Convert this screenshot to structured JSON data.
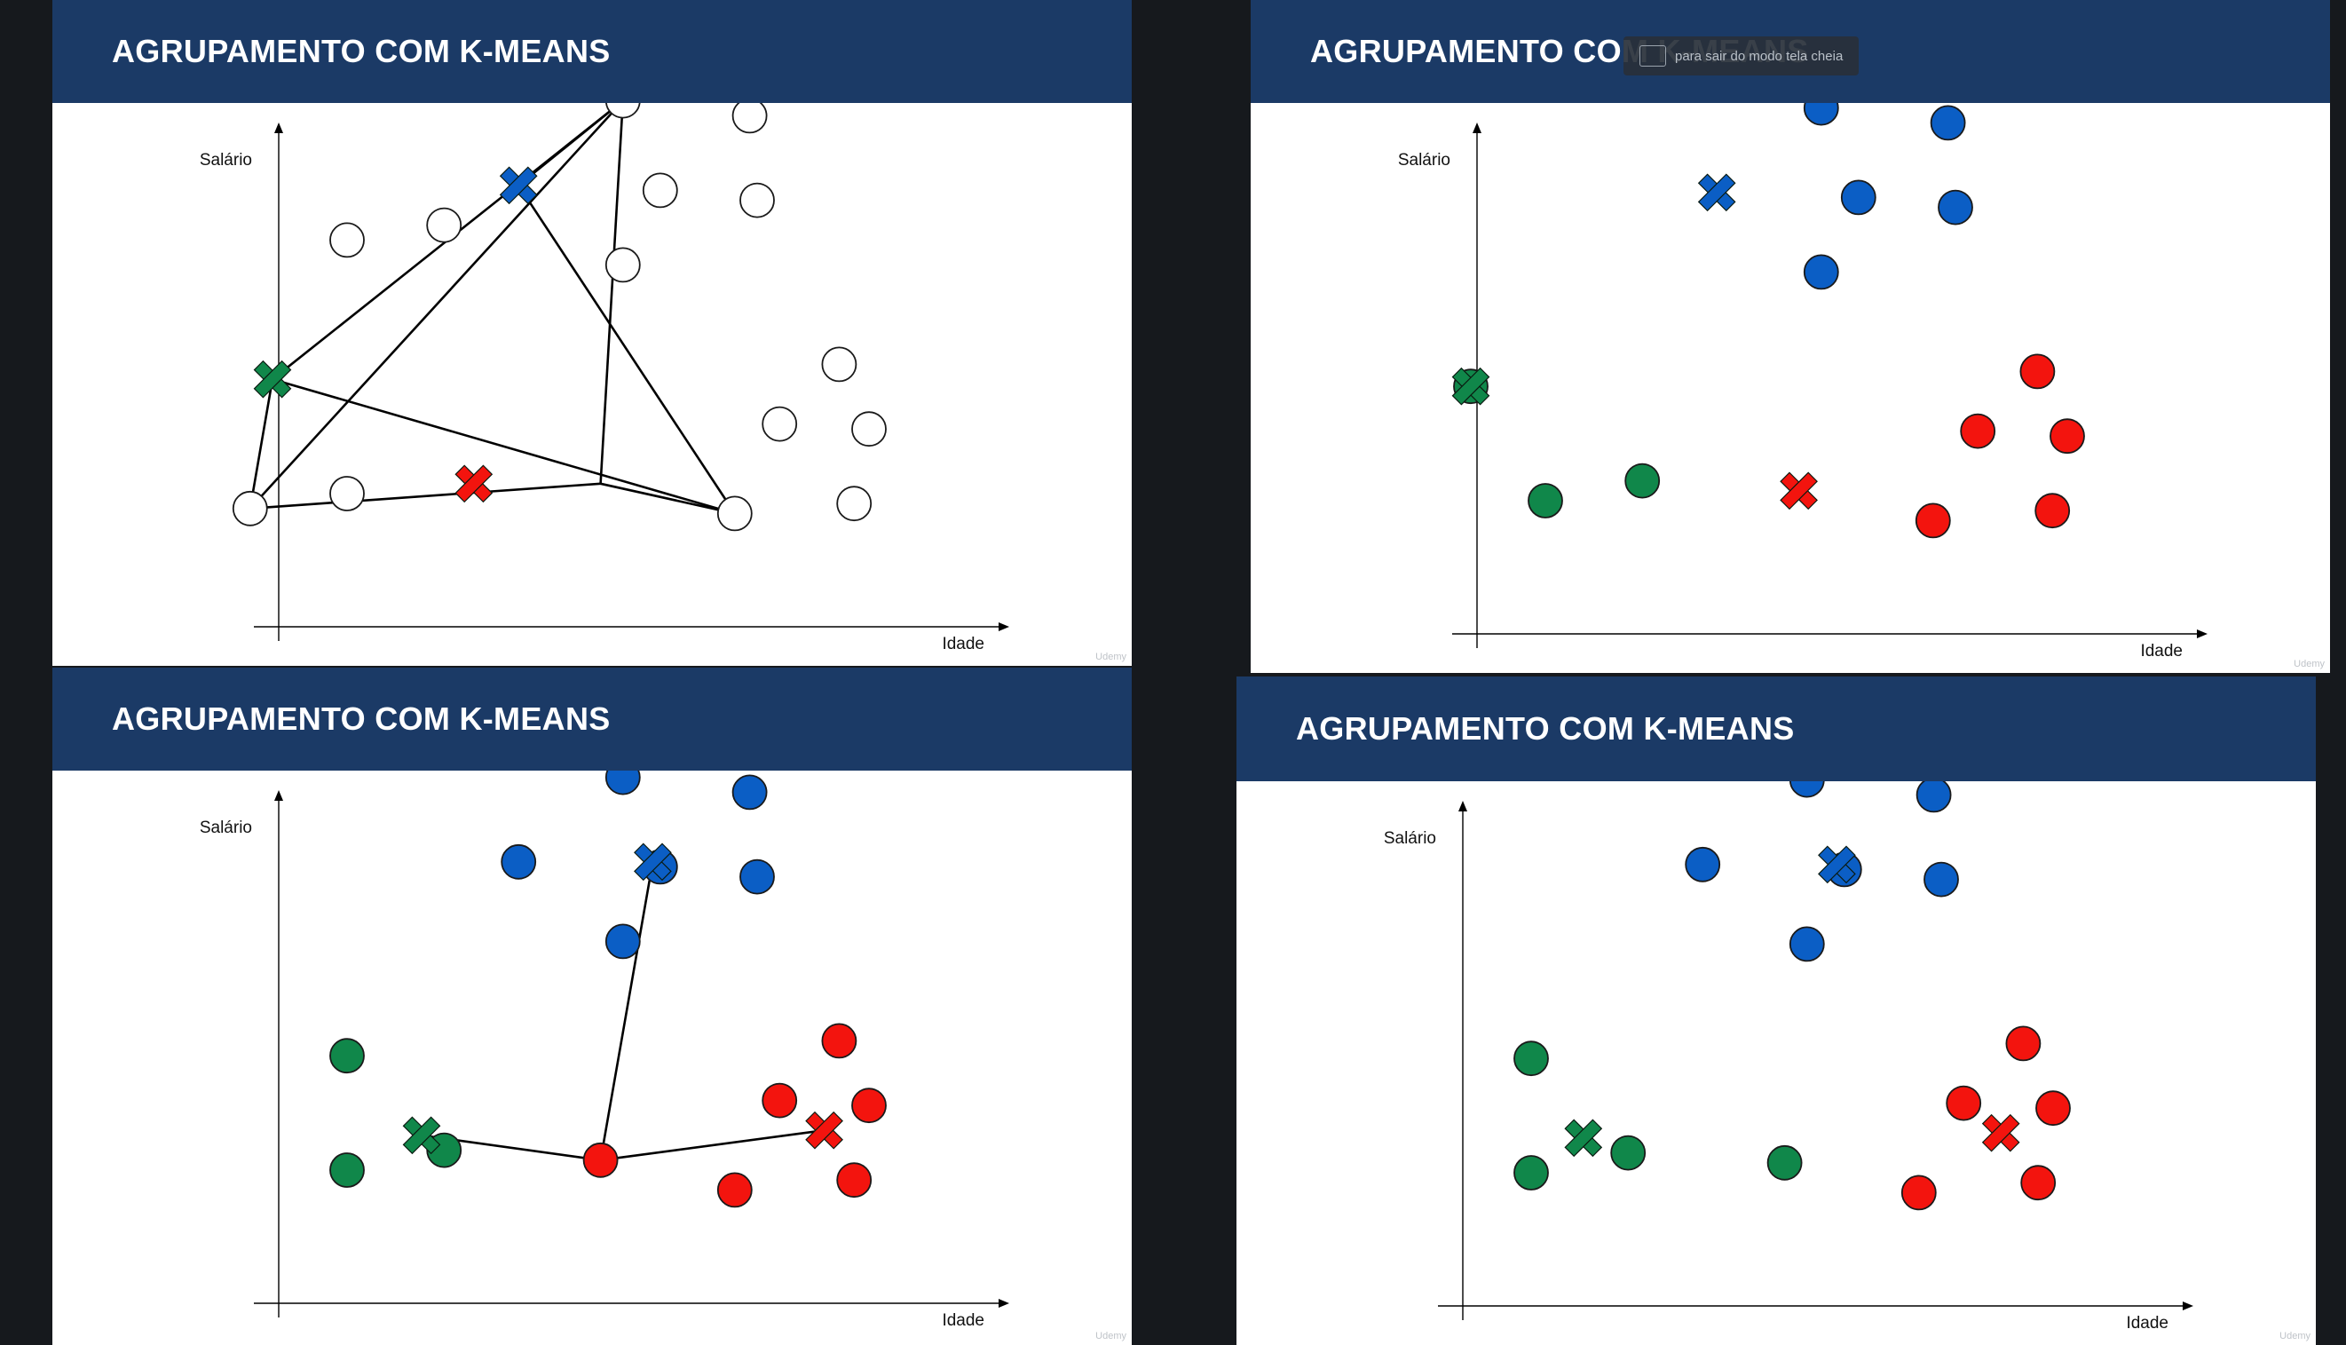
{
  "colors": {
    "background": "#16191d",
    "header": "#1b3a66",
    "blue": "#0b5ec5",
    "green": "#10874a",
    "red": "#f3140e",
    "line": "#000000"
  },
  "toast": {
    "text": "para sair do modo tela cheia"
  },
  "watermark": "Udemy",
  "slides": [
    {
      "title": "AGRUPAMENTO COM K-MEANS",
      "chart_data": {
        "type": "scatter",
        "xlabel": "Idade",
        "ylabel": "Salário",
        "points": [
          {
            "x": 5,
            "y": 66,
            "c": "none"
          },
          {
            "x": 18,
            "y": 69,
            "c": "none"
          },
          {
            "x": 42,
            "y": 94,
            "c": "none"
          },
          {
            "x": 59,
            "y": 91,
            "c": "none"
          },
          {
            "x": 47,
            "y": 76,
            "c": "none"
          },
          {
            "x": 60,
            "y": 74,
            "c": "none"
          },
          {
            "x": 42,
            "y": 61,
            "c": "none"
          },
          {
            "x": 71,
            "y": 41,
            "c": "none"
          },
          {
            "x": 63,
            "y": 29,
            "c": "none"
          },
          {
            "x": 75,
            "y": 28,
            "c": "none"
          },
          {
            "x": -8,
            "y": 12,
            "c": "none"
          },
          {
            "x": 5,
            "y": 15,
            "c": "none"
          },
          {
            "x": 57,
            "y": 11,
            "c": "none"
          },
          {
            "x": 73,
            "y": 13,
            "c": "none"
          }
        ],
        "centroids": [
          {
            "x": 28,
            "y": 77,
            "c": "blue"
          },
          {
            "x": -5,
            "y": 38,
            "c": "green"
          },
          {
            "x": 22,
            "y": 17,
            "c": "red"
          }
        ],
        "lines": [
          [
            [
              42,
              94
            ],
            [
              28,
              77
            ]
          ],
          [
            [
              42,
              94
            ],
            [
              -5,
              38
            ]
          ],
          [
            [
              42,
              94
            ],
            [
              -8,
              12
            ]
          ],
          [
            [
              42,
              94
            ],
            [
              39,
              17
            ]
          ],
          [
            [
              28,
              77
            ],
            [
              57,
              11
            ]
          ],
          [
            [
              -5,
              38
            ],
            [
              -8,
              12
            ]
          ],
          [
            [
              -5,
              38
            ],
            [
              57,
              11
            ]
          ],
          [
            [
              -8,
              12
            ],
            [
              39,
              17
            ]
          ],
          [
            [
              39,
              17
            ],
            [
              57,
              11
            ]
          ]
        ]
      }
    },
    {
      "title": "AGRUPAMENTO COM K-MEANS",
      "chart_data": {
        "type": "scatter",
        "xlabel": "Idade",
        "ylabel": "Salário",
        "points": [
          {
            "x": 42,
            "y": 94,
            "c": "blue"
          },
          {
            "x": 59,
            "y": 91,
            "c": "blue"
          },
          {
            "x": 47,
            "y": 76,
            "c": "blue"
          },
          {
            "x": 60,
            "y": 74,
            "c": "blue"
          },
          {
            "x": 42,
            "y": 61,
            "c": "blue"
          },
          {
            "x": -5,
            "y": 38,
            "c": "green"
          },
          {
            "x": 5,
            "y": 15,
            "c": "green"
          },
          {
            "x": 18,
            "y": 19,
            "c": "green"
          },
          {
            "x": 71,
            "y": 41,
            "c": "red"
          },
          {
            "x": 63,
            "y": 29,
            "c": "red"
          },
          {
            "x": 75,
            "y": 28,
            "c": "red"
          },
          {
            "x": 57,
            "y": 11,
            "c": "red"
          },
          {
            "x": 73,
            "y": 13,
            "c": "red"
          }
        ],
        "centroids": [
          {
            "x": 28,
            "y": 77,
            "c": "blue"
          },
          {
            "x": -5,
            "y": 38,
            "c": "green"
          },
          {
            "x": 39,
            "y": 17,
            "c": "red"
          }
        ],
        "lines": []
      }
    },
    {
      "title": "AGRUPAMENTO COM K-MEANS",
      "chart_data": {
        "type": "scatter",
        "xlabel": "Idade",
        "ylabel": "Salário",
        "points": [
          {
            "x": 42,
            "y": 94,
            "c": "blue"
          },
          {
            "x": 59,
            "y": 91,
            "c": "blue"
          },
          {
            "x": 28,
            "y": 77,
            "c": "blue"
          },
          {
            "x": 47,
            "y": 76,
            "c": "blue"
          },
          {
            "x": 60,
            "y": 74,
            "c": "blue"
          },
          {
            "x": 42,
            "y": 61,
            "c": "blue"
          },
          {
            "x": 5,
            "y": 38,
            "c": "green"
          },
          {
            "x": 5,
            "y": 15,
            "c": "green"
          },
          {
            "x": 18,
            "y": 19,
            "c": "green"
          },
          {
            "x": 71,
            "y": 41,
            "c": "red"
          },
          {
            "x": 63,
            "y": 29,
            "c": "red"
          },
          {
            "x": 75,
            "y": 28,
            "c": "red"
          },
          {
            "x": 39,
            "y": 17,
            "c": "red"
          },
          {
            "x": 57,
            "y": 11,
            "c": "red"
          },
          {
            "x": 73,
            "y": 13,
            "c": "red"
          }
        ],
        "centroids": [
          {
            "x": 46,
            "y": 77,
            "c": "blue"
          },
          {
            "x": 15,
            "y": 22,
            "c": "green"
          },
          {
            "x": 69,
            "y": 23,
            "c": "red"
          }
        ],
        "lines": [
          [
            [
              39,
              17
            ],
            [
              46,
              77
            ]
          ],
          [
            [
              39,
              17
            ],
            [
              15,
              22
            ]
          ],
          [
            [
              39,
              17
            ],
            [
              69,
              23
            ]
          ]
        ]
      }
    },
    {
      "title": "AGRUPAMENTO COM K-MEANS",
      "chart_data": {
        "type": "scatter",
        "xlabel": "Idade",
        "ylabel": "Salário",
        "points": [
          {
            "x": 42,
            "y": 94,
            "c": "blue"
          },
          {
            "x": 59,
            "y": 91,
            "c": "blue"
          },
          {
            "x": 28,
            "y": 77,
            "c": "blue"
          },
          {
            "x": 47,
            "y": 76,
            "c": "blue"
          },
          {
            "x": 60,
            "y": 74,
            "c": "blue"
          },
          {
            "x": 42,
            "y": 61,
            "c": "blue"
          },
          {
            "x": 5,
            "y": 38,
            "c": "green"
          },
          {
            "x": 5,
            "y": 15,
            "c": "green"
          },
          {
            "x": 18,
            "y": 19,
            "c": "green"
          },
          {
            "x": 39,
            "y": 17,
            "c": "green"
          },
          {
            "x": 71,
            "y": 41,
            "c": "red"
          },
          {
            "x": 63,
            "y": 29,
            "c": "red"
          },
          {
            "x": 75,
            "y": 28,
            "c": "red"
          },
          {
            "x": 57,
            "y": 11,
            "c": "red"
          },
          {
            "x": 73,
            "y": 13,
            "c": "red"
          }
        ],
        "centroids": [
          {
            "x": 46,
            "y": 77,
            "c": "blue"
          },
          {
            "x": 12,
            "y": 22,
            "c": "green"
          },
          {
            "x": 68,
            "y": 23,
            "c": "red"
          }
        ],
        "lines": []
      }
    }
  ]
}
